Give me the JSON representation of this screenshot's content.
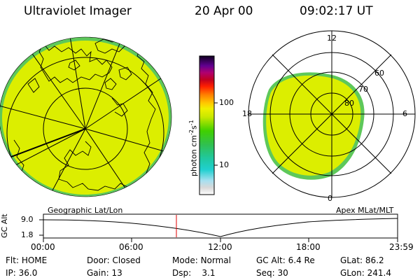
{
  "header": {
    "instrument": "Ultraviolet Imager",
    "date": "20 Apr 00",
    "time": "09:02:17 UT"
  },
  "geo_panel": {
    "label": "Geographic Lat/Lon"
  },
  "mag_panel": {
    "label": "Apex MLat/MLT",
    "mlt_labels": {
      "top": "12",
      "left": "18",
      "right": "6",
      "bottom": "0"
    },
    "lat_labels": [
      "60",
      "70",
      "80"
    ]
  },
  "colorbar": {
    "unit_text": "photon cm",
    "unit_exp1": "-2",
    "unit_s": "s",
    "unit_exp2": "-1",
    "ticks": [
      "100",
      "10"
    ]
  },
  "timeline": {
    "axis_label": "GC Alt",
    "y_ticks": [
      "9.0",
      "1.8"
    ],
    "x_ticks": [
      "00:00",
      "06:00",
      "12:00",
      "18:00",
      "23:59"
    ]
  },
  "info": {
    "row1": [
      {
        "key": "Flt:",
        "value": "HOME"
      },
      {
        "key": "Door:",
        "value": "Closed"
      },
      {
        "key": "Mode:",
        "value": "Normal"
      },
      {
        "key": "GC Alt:",
        "value": "6.4 Re"
      },
      {
        "key": "GLat:",
        "value": "86.2"
      }
    ],
    "row2": [
      {
        "key": "IP:",
        "value": "36.0"
      },
      {
        "key": "Gain:",
        "value": "13"
      },
      {
        "key": "Dsp:",
        "value": "3.1"
      },
      {
        "key": "Seq:",
        "value": "30"
      },
      {
        "key": "GLon:",
        "value": "241.4"
      }
    ]
  },
  "colors": {
    "fill": "#dcee00",
    "edge": "#5ec85a"
  }
}
